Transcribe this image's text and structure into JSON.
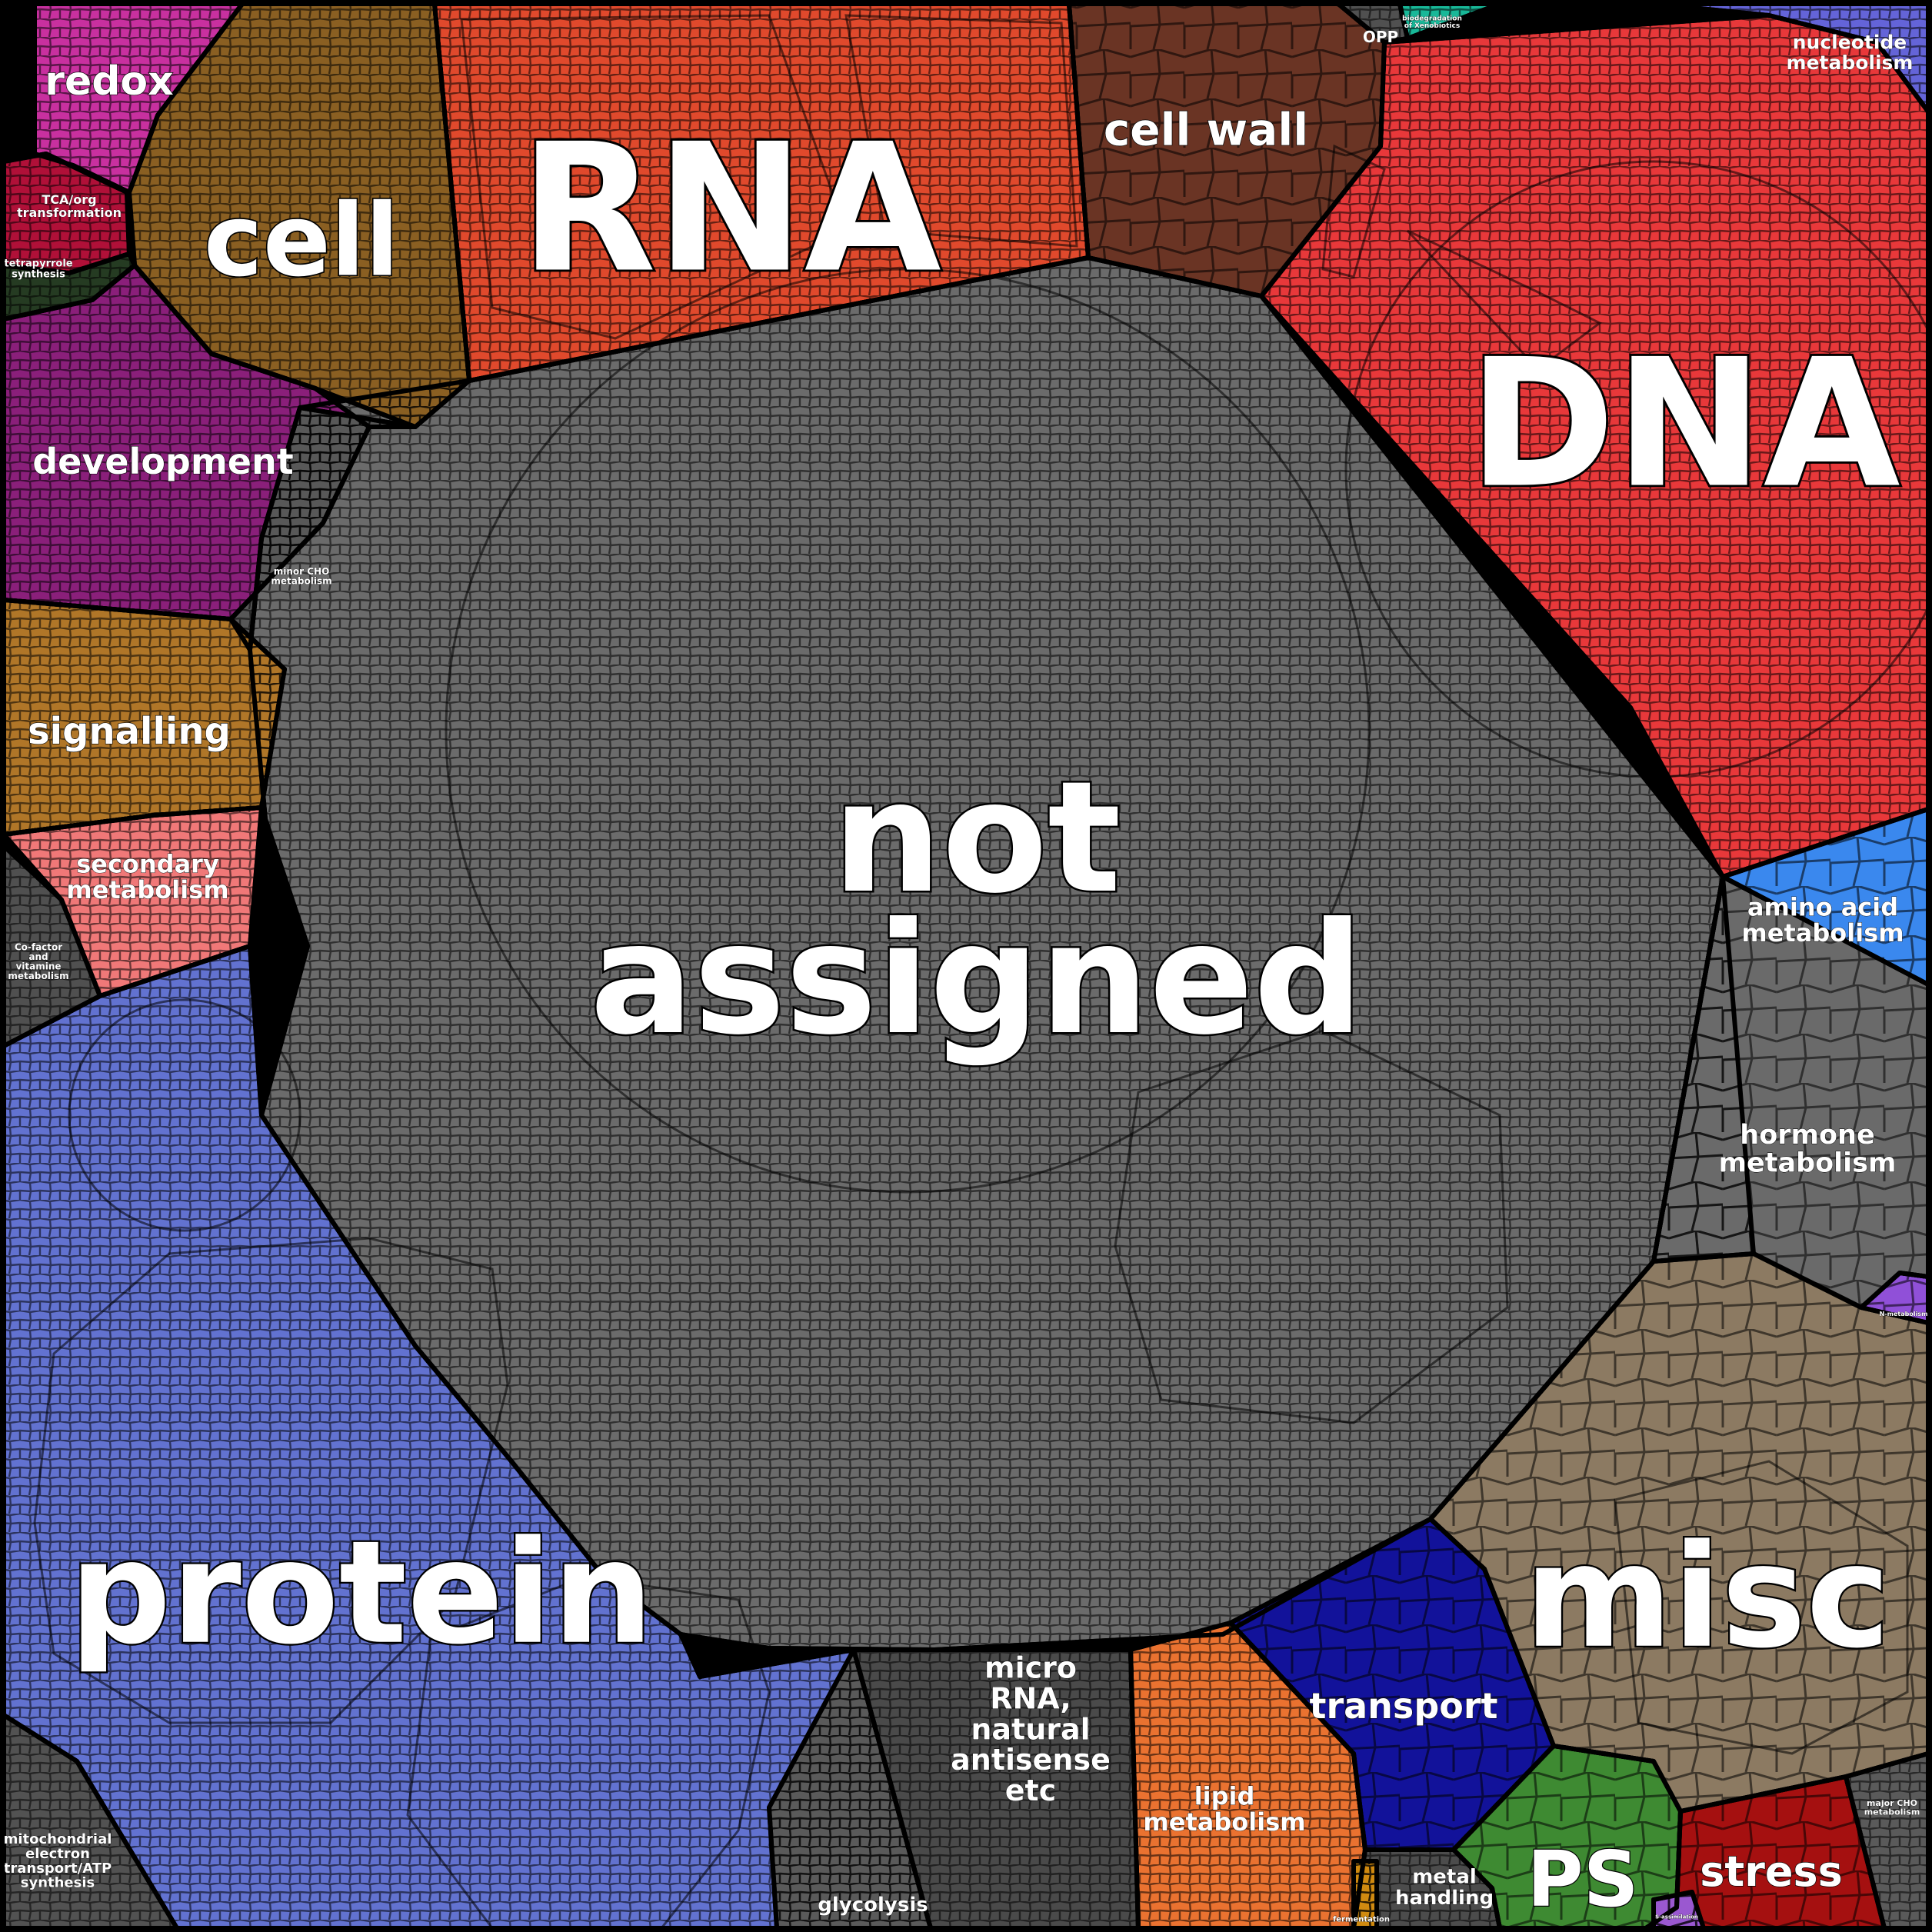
{
  "categories": [
    {
      "key": "not_assigned",
      "lines": [
        "not",
        "assigned"
      ],
      "color": "#6b6b6b"
    },
    {
      "key": "dna",
      "lines": [
        "DNA"
      ],
      "color": "#e8383a"
    },
    {
      "key": "rna",
      "lines": [
        "RNA"
      ],
      "color": "#e0492c"
    },
    {
      "key": "protein",
      "lines": [
        "protein"
      ],
      "color": "#6272d0"
    },
    {
      "key": "misc",
      "lines": [
        "misc"
      ],
      "color": "#8c7a62"
    },
    {
      "key": "cell",
      "lines": [
        "cell"
      ],
      "color": "#8a5f22"
    },
    {
      "key": "cell_wall",
      "lines": [
        "cell wall"
      ],
      "color": "#6a3424"
    },
    {
      "key": "development",
      "lines": [
        "development"
      ],
      "color": "#8a1f7a"
    },
    {
      "key": "redox",
      "lines": [
        "redox"
      ],
      "color": "#c8309f"
    },
    {
      "key": "signalling",
      "lines": [
        "signalling"
      ],
      "color": "#b07628"
    },
    {
      "key": "secondary_metabolism",
      "lines": [
        "secondary",
        "metabolism"
      ],
      "color": "#f07878"
    },
    {
      "key": "amino_acid_metabolism",
      "lines": [
        "amino acid",
        "metabolism"
      ],
      "color": "#3a88ee"
    },
    {
      "key": "hormone_metabolism",
      "lines": [
        "hormone",
        "metabolism"
      ],
      "color": "#6a6a6a"
    },
    {
      "key": "transport",
      "lines": [
        "transport"
      ],
      "color": "#12129a"
    },
    {
      "key": "micro_rna",
      "lines": [
        "micro",
        "RNA,",
        "natural",
        "antisense",
        "etc"
      ],
      "color": "#4a4a4a"
    },
    {
      "key": "lipid_metabolism",
      "lines": [
        "lipid",
        "metabolism"
      ],
      "color": "#ea7230"
    },
    {
      "key": "ps",
      "lines": [
        "PS"
      ],
      "color": "#3e8a32"
    },
    {
      "key": "stress",
      "lines": [
        "stress"
      ],
      "color": "#a51010"
    },
    {
      "key": "nucleotide_metabolism",
      "lines": [
        "nucleotide",
        "metabolism"
      ],
      "color": "#6464d8"
    },
    {
      "key": "glycolysis",
      "lines": [
        "glycolysis"
      ],
      "color": "#5a5a5a"
    },
    {
      "key": "metal_handling",
      "lines": [
        "metal",
        "handling"
      ],
      "color": "#4c4c4c"
    },
    {
      "key": "mitochondrial_electron_transport",
      "lines": [
        "mitochondrial",
        "electron",
        "transport/ATP",
        "synthesis"
      ],
      "color": "#525252"
    },
    {
      "key": "tca",
      "lines": [
        "TCA/org",
        "transformation"
      ],
      "color": "#b01038"
    },
    {
      "key": "tetrapyrrole",
      "lines": [
        "tetrapyrrole",
        "synthesis"
      ],
      "color": "#253b22"
    },
    {
      "key": "minor_cho",
      "lines": [
        "minor CHO",
        "metabolism"
      ],
      "color": "#585858"
    },
    {
      "key": "cofactor",
      "lines": [
        "Co-factor",
        "and",
        "vitamine",
        "metabolism"
      ],
      "color": "#505050"
    },
    {
      "key": "opp",
      "lines": [
        "OPP"
      ],
      "color": "#505050"
    },
    {
      "key": "biodegradation",
      "lines": [
        "biodegradation",
        "of Xenobiotics"
      ],
      "color": "#18b898"
    },
    {
      "key": "major_cho",
      "lines": [
        "major CHO",
        "metabolism"
      ],
      "color": "#5a5a5a"
    },
    {
      "key": "fermentation",
      "lines": [
        "fermentation"
      ],
      "color": "#d08a10"
    },
    {
      "key": "n_metabolism",
      "lines": [
        "N-metabolism"
      ],
      "color": "#9050d8"
    },
    {
      "key": "s_assimilation",
      "lines": [
        "S-assimilation"
      ],
      "color": "#9a58d0"
    }
  ]
}
